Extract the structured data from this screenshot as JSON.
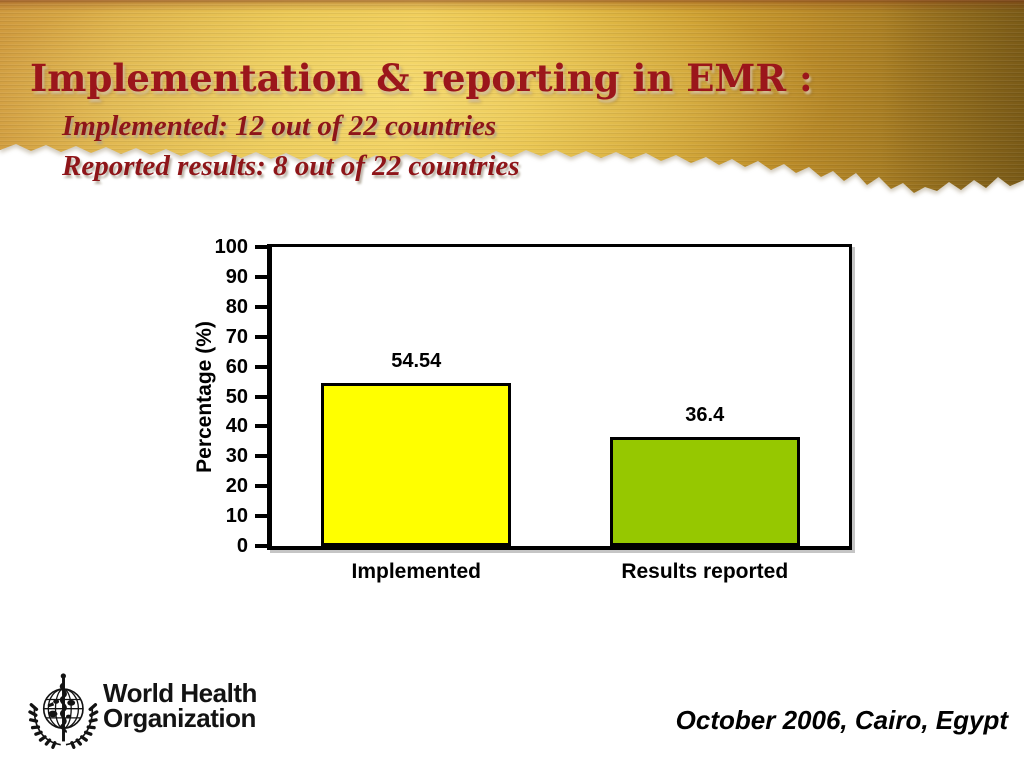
{
  "slide": {
    "title": "Implementation & reporting in EMR :",
    "subtitle_line1": "Implemented: 12 out of 22 countries",
    "subtitle_line2": "Reported results: 8 out of 22 countries",
    "footer_date": "October 2006, Cairo, Egypt",
    "logo": {
      "line1": "World Health",
      "line2": "Organization"
    }
  },
  "colors": {
    "title_text": "#9b161b",
    "header_gold_light": "#eec953",
    "header_gold_dark": "#8f6f1e",
    "bar_implemented": "#ffff00",
    "bar_results_reported": "#96c800",
    "axis": "#000000"
  },
  "chart_data": {
    "type": "bar",
    "categories": [
      "Implemented",
      "Results reported"
    ],
    "values": [
      54.54,
      36.4
    ],
    "value_labels": [
      "54.54",
      "36.4"
    ],
    "bar_colors": [
      "#ffff00",
      "#96c800"
    ],
    "title": "",
    "xlabel": "",
    "ylabel": "Percentage (%)",
    "ylim": [
      0,
      100
    ],
    "yticks": [
      0,
      10,
      20,
      30,
      40,
      50,
      60,
      70,
      80,
      90,
      100
    ],
    "grid": false,
    "legend": "none"
  }
}
